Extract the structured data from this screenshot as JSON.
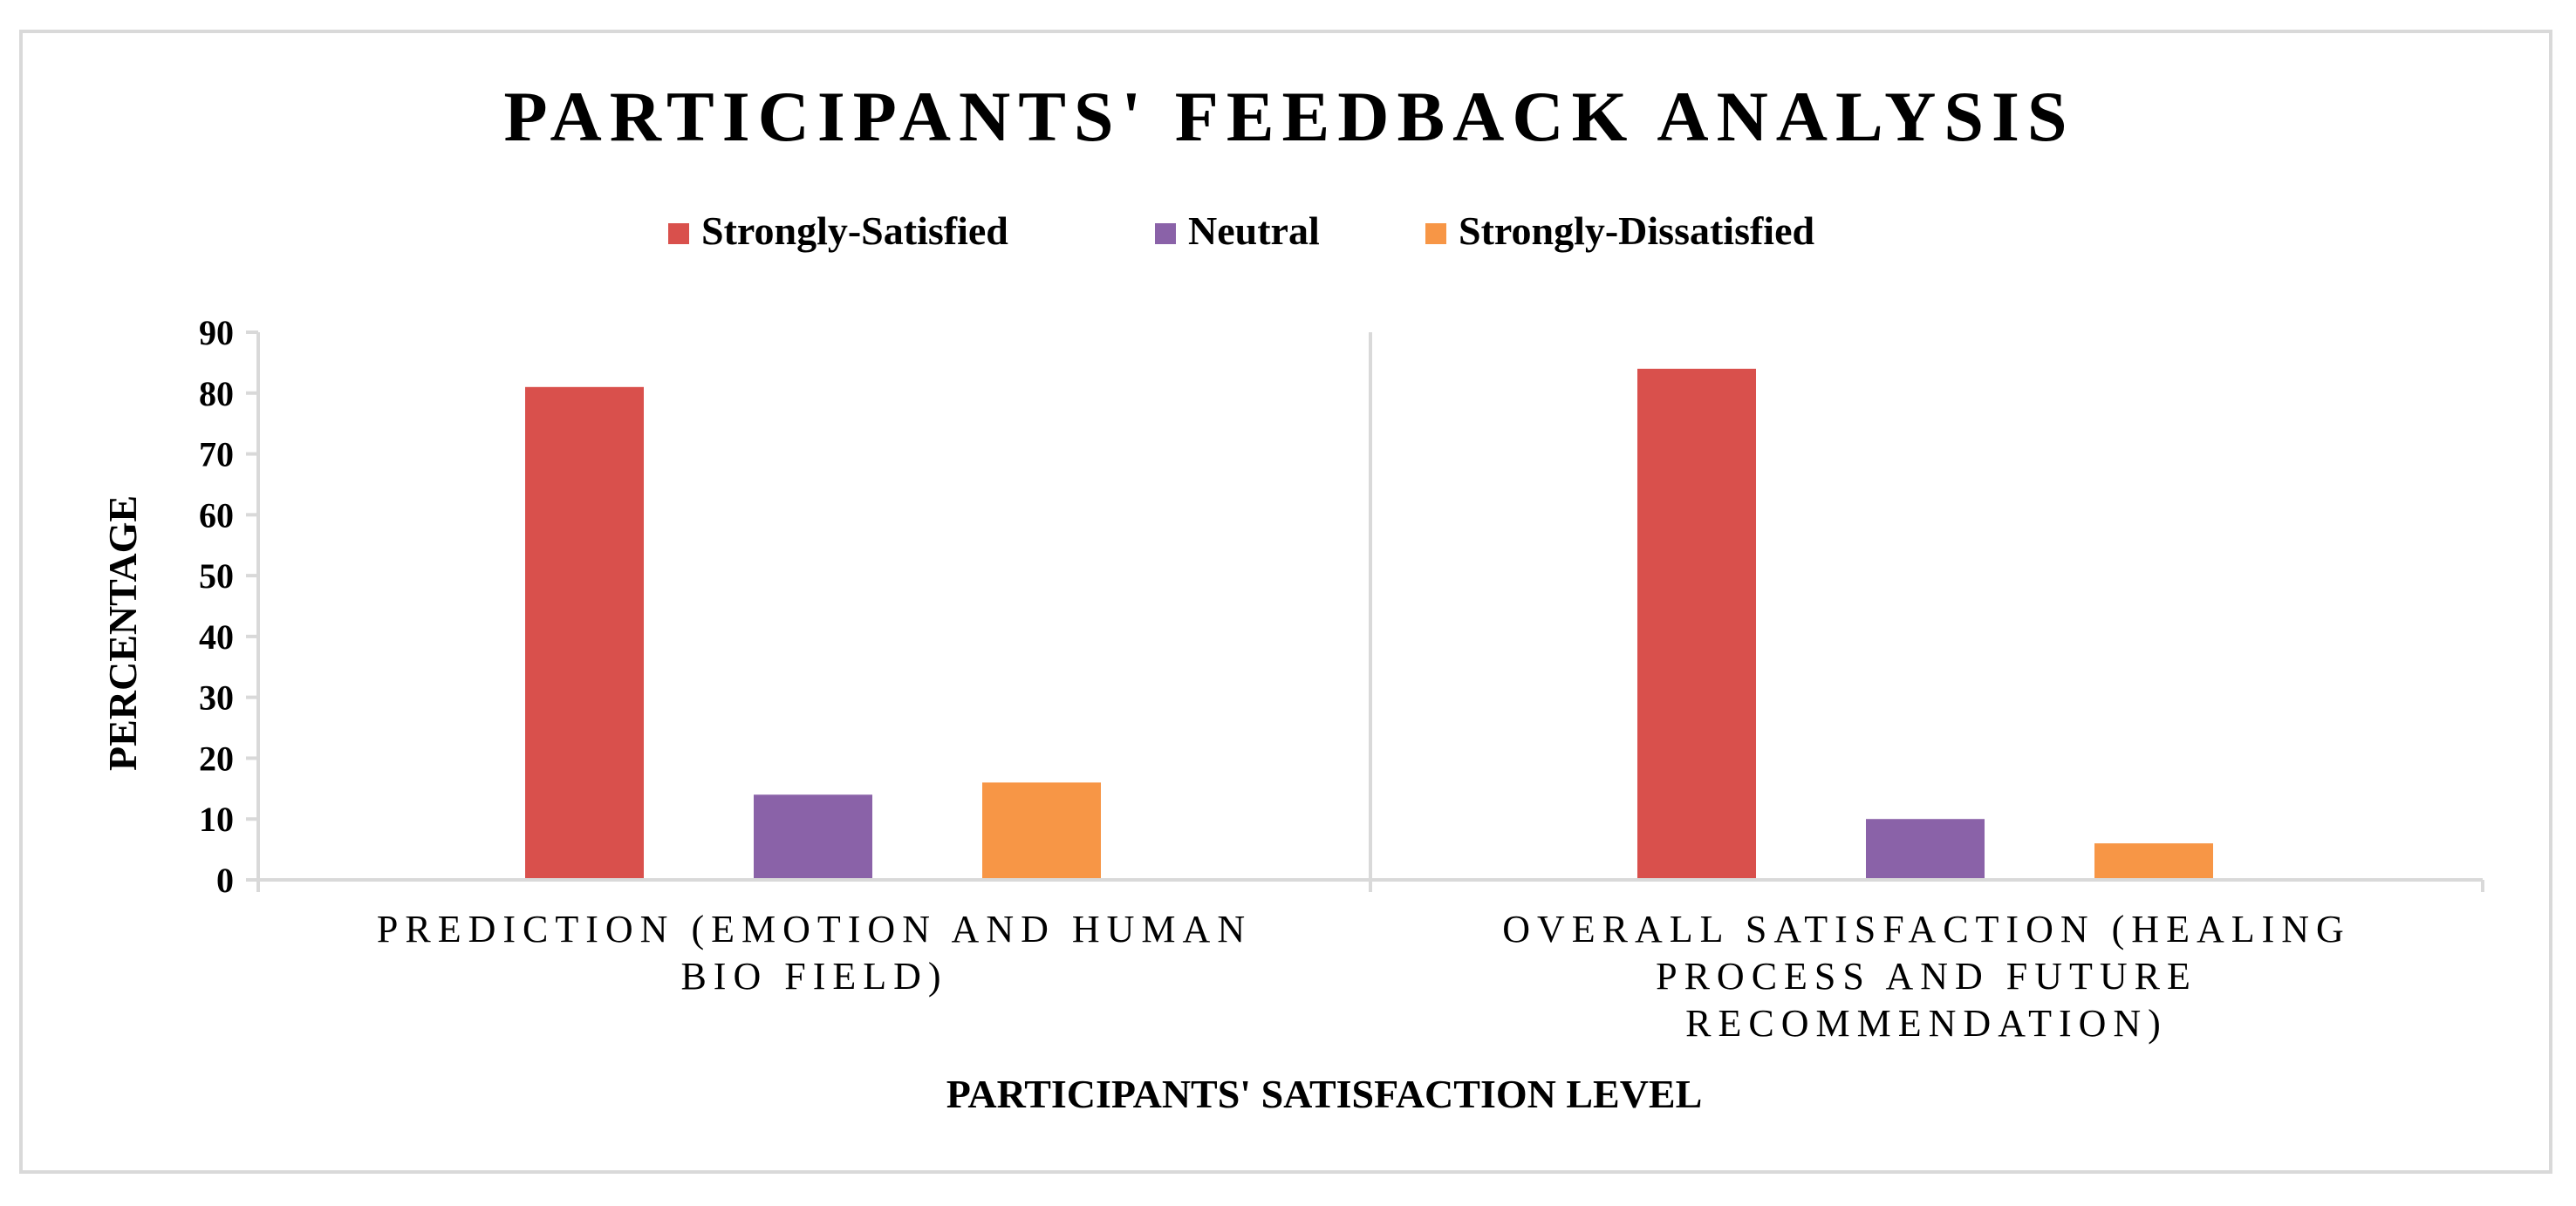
{
  "chart_data": {
    "type": "bar",
    "title": "PARTICIPANTS' FEEDBACK ANALYSIS",
    "xlabel": "PARTICIPANTS' SATISFACTION LEVEL",
    "ylabel": "PERCENTAGE",
    "ylim": [
      0,
      90
    ],
    "yticks": [
      0,
      10,
      20,
      30,
      40,
      50,
      60,
      70,
      80,
      90
    ],
    "grid": false,
    "legend_position": "top-center",
    "categories": [
      [
        "PREDICTION (EMOTION AND HUMAN",
        "BIO FIELD)"
      ],
      [
        "OVERALL SATISFACTION (HEALING",
        "PROCESS AND FUTURE",
        "RECOMMENDATION)"
      ]
    ],
    "series": [
      {
        "name": "Strongly-Satisfied",
        "color": "#d9504c",
        "values": [
          81,
          84
        ]
      },
      {
        "name": "Neutral",
        "color": "#8a62a8",
        "values": [
          14,
          10
        ]
      },
      {
        "name": "Strongly-Dissatisfied",
        "color": "#f79646",
        "values": [
          16,
          6
        ]
      }
    ]
  }
}
